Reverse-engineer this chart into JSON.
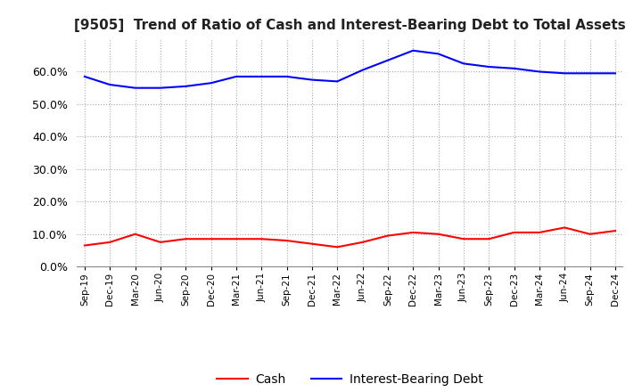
{
  "title": "[9505]  Trend of Ratio of Cash and Interest-Bearing Debt to Total Assets",
  "labels": [
    "Sep-19",
    "Dec-19",
    "Mar-20",
    "Jun-20",
    "Sep-20",
    "Dec-20",
    "Mar-21",
    "Jun-21",
    "Sep-21",
    "Dec-21",
    "Mar-22",
    "Jun-22",
    "Sep-22",
    "Dec-22",
    "Mar-23",
    "Jun-23",
    "Sep-23",
    "Dec-23",
    "Mar-24",
    "Jun-24",
    "Sep-24",
    "Dec-24"
  ],
  "cash": [
    6.5,
    7.5,
    10.0,
    7.5,
    8.5,
    8.5,
    8.5,
    8.5,
    8.0,
    7.0,
    6.0,
    7.5,
    9.5,
    10.5,
    10.0,
    8.5,
    8.5,
    10.5,
    10.5,
    12.0,
    10.0,
    11.0
  ],
  "interest_bearing_debt": [
    58.5,
    56.0,
    55.0,
    55.0,
    55.5,
    56.5,
    58.5,
    58.5,
    58.5,
    57.5,
    57.0,
    60.5,
    63.5,
    66.5,
    65.5,
    62.5,
    61.5,
    61.0,
    60.0,
    59.5,
    59.5,
    59.5
  ],
  "cash_color": "#ff0000",
  "debt_color": "#0000ff",
  "ylim": [
    0.0,
    70.0
  ],
  "yticks": [
    0.0,
    10.0,
    20.0,
    30.0,
    40.0,
    50.0,
    60.0
  ],
  "grid_color": "#aaaaaa",
  "background_color": "#ffffff",
  "legend_cash": "Cash",
  "legend_debt": "Interest-Bearing Debt"
}
